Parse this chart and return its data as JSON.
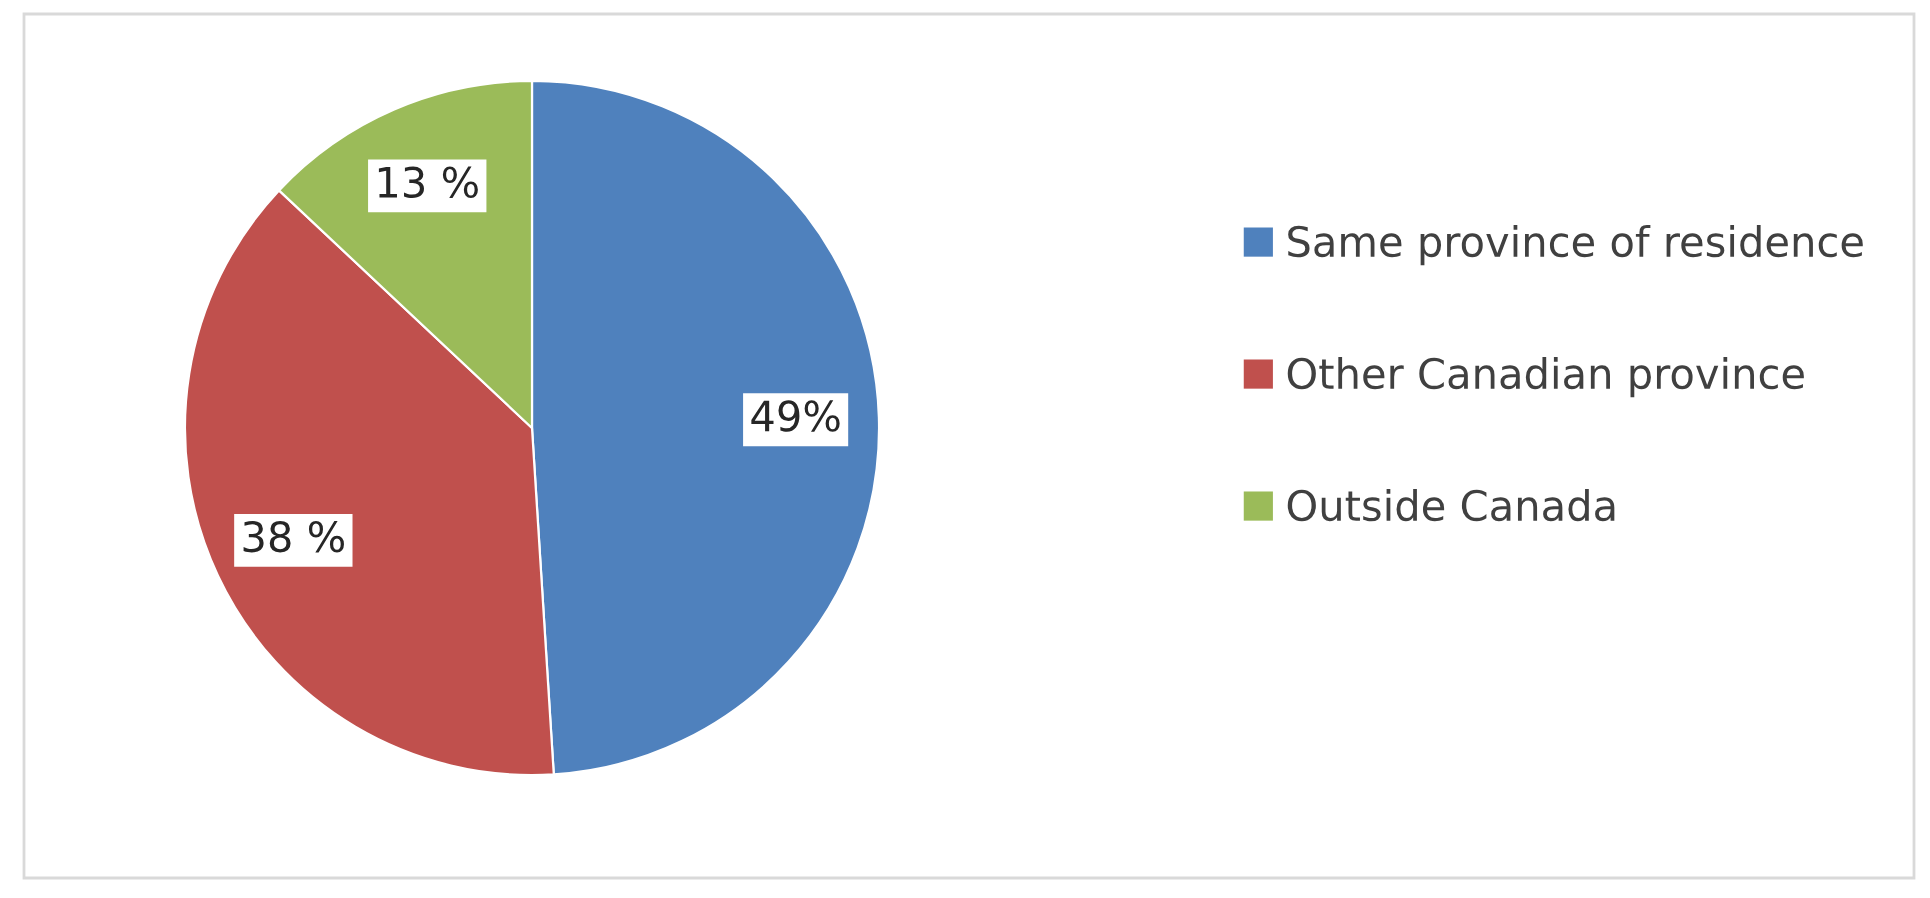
{
  "chart_data": {
    "type": "pie",
    "categories": [
      "Same province of residence",
      "Other Canadian province",
      "Outside Canada"
    ],
    "values": [
      49,
      38,
      13
    ],
    "colors": [
      "#4f81bd",
      "#c0504d",
      "#9bbb59"
    ],
    "value_labels": [
      "49%",
      "38 %",
      "13 %"
    ],
    "legend": "right"
  }
}
